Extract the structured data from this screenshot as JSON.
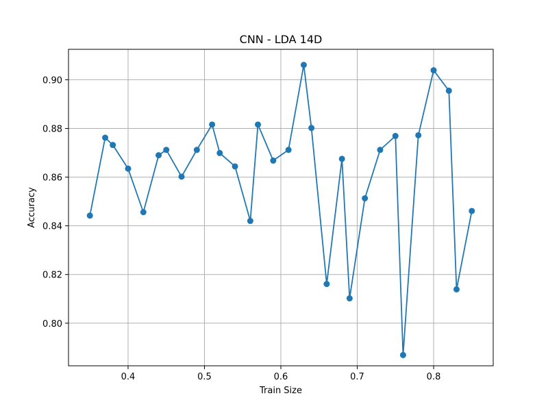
{
  "chart_data": {
    "type": "line",
    "title": "CNN - LDA 14D",
    "xlabel": "Train Size",
    "ylabel": "Accuracy",
    "xlim": [
      0.322,
      0.878
    ],
    "ylim": [
      0.7825,
      0.9125
    ],
    "x_ticks": [
      0.4,
      0.5,
      0.6,
      0.7,
      0.8
    ],
    "x_tick_labels": [
      "0.4",
      "0.5",
      "0.6",
      "0.7",
      "0.8"
    ],
    "y_ticks": [
      0.8,
      0.82,
      0.84,
      0.86,
      0.88,
      0.9
    ],
    "y_tick_labels": [
      "0.80",
      "0.82",
      "0.84",
      "0.86",
      "0.88",
      "0.90"
    ],
    "grid": true,
    "color": "#1f77b4",
    "marker": "circle",
    "x": [
      0.35,
      0.37,
      0.38,
      0.4,
      0.42,
      0.44,
      0.45,
      0.47,
      0.49,
      0.51,
      0.52,
      0.54,
      0.56,
      0.57,
      0.59,
      0.61,
      0.63,
      0.64,
      0.66,
      0.68,
      0.69,
      0.71,
      0.73,
      0.75,
      0.76,
      0.78,
      0.8,
      0.82,
      0.83,
      0.85
    ],
    "y": [
      0.8442,
      0.8762,
      0.8732,
      0.8635,
      0.8456,
      0.869,
      0.8712,
      0.8602,
      0.8712,
      0.8816,
      0.8699,
      0.8644,
      0.842,
      0.8816,
      0.8668,
      0.8712,
      0.9061,
      0.8802,
      0.8161,
      0.8675,
      0.8102,
      0.8513,
      0.8712,
      0.8769,
      0.7869,
      0.8772,
      0.9039,
      0.8955,
      0.8139,
      0.8461
    ]
  }
}
